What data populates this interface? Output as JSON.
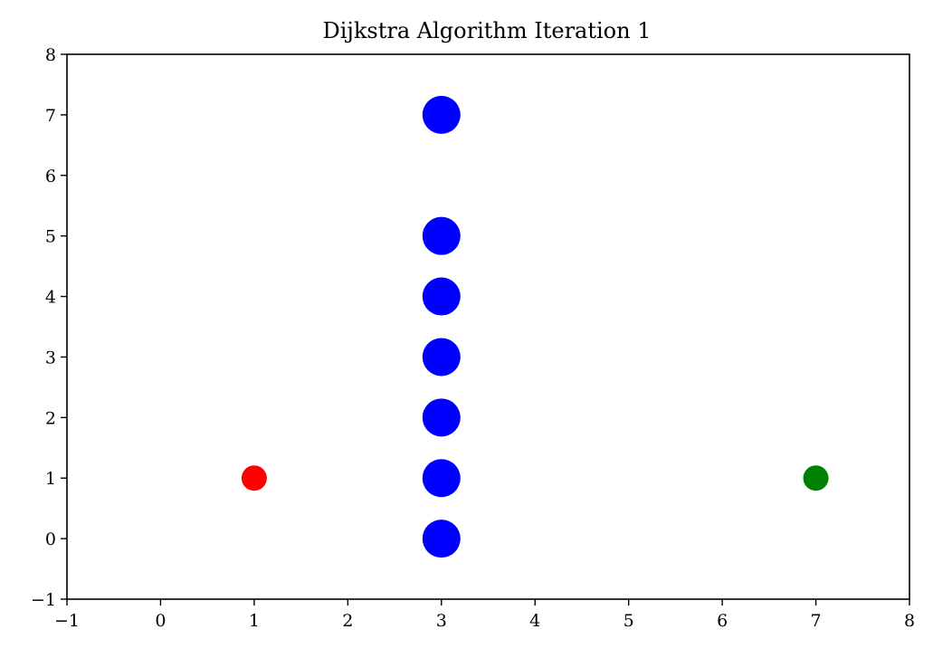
{
  "chart_data": {
    "type": "scatter",
    "title": "Dijkstra Algorithm Iteration 1",
    "xlabel": "",
    "ylabel": "",
    "xlim": [
      -1,
      8
    ],
    "ylim": [
      -1,
      8
    ],
    "xticks": [
      -1,
      0,
      1,
      2,
      3,
      4,
      5,
      6,
      7,
      8
    ],
    "yticks": [
      -1,
      0,
      1,
      2,
      3,
      4,
      5,
      6,
      7,
      8
    ],
    "xtick_labels": [
      "−1",
      "0",
      "1",
      "2",
      "3",
      "4",
      "5",
      "6",
      "7",
      "8"
    ],
    "ytick_labels": [
      "−1",
      "0",
      "1",
      "2",
      "3",
      "4",
      "5",
      "6",
      "7",
      "8"
    ],
    "grid": false,
    "series": [
      {
        "color": "#0000ff",
        "marker_size": "large",
        "points": [
          {
            "x": 3,
            "y": 7
          },
          {
            "x": 3,
            "y": 5
          },
          {
            "x": 3,
            "y": 4
          },
          {
            "x": 3,
            "y": 3
          },
          {
            "x": 3,
            "y": 2
          },
          {
            "x": 3,
            "y": 1
          },
          {
            "x": 3,
            "y": 0
          }
        ]
      },
      {
        "color": "#ff0000",
        "marker_size": "small",
        "points": [
          {
            "x": 1,
            "y": 1
          }
        ]
      },
      {
        "color": "#008000",
        "marker_size": "small",
        "points": [
          {
            "x": 7,
            "y": 1
          }
        ]
      }
    ]
  }
}
